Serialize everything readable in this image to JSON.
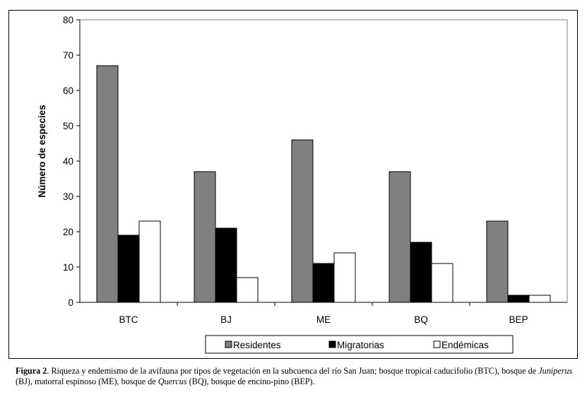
{
  "chart_data": {
    "type": "bar",
    "title": "",
    "xlabel": "",
    "ylabel": "Número de especies",
    "ylim": [
      0,
      80
    ],
    "yticks": [
      0,
      10,
      20,
      30,
      40,
      50,
      60,
      70,
      80
    ],
    "categories": [
      "BTC",
      "BJ",
      "ME",
      "BQ",
      "BEP"
    ],
    "series": [
      {
        "name": "Residentes",
        "color": "#808080",
        "values": [
          67,
          37,
          46,
          37,
          23
        ]
      },
      {
        "name": "Migratorias",
        "color": "#000000",
        "values": [
          19,
          21,
          11,
          17,
          2
        ]
      },
      {
        "name": "Endémicas",
        "color": "#ffffff",
        "values": [
          23,
          7,
          14,
          11,
          2
        ]
      }
    ],
    "legend_position": "bottom",
    "grid": false
  },
  "caption": {
    "label": "Figura 2",
    "part1": ". Riqueza y endemismo de la avifauna por tipos de vegetación en la subcuenca del río San Juan; bosque tropical caducifolio (BTC), bosque de ",
    "italic1": "Juniperus",
    "part2": " (BJ), matorral espinoso (ME), bosque de ",
    "italic2": "Quercus",
    "part3": " (BQ), bosque de encino-pino (BEP)."
  }
}
